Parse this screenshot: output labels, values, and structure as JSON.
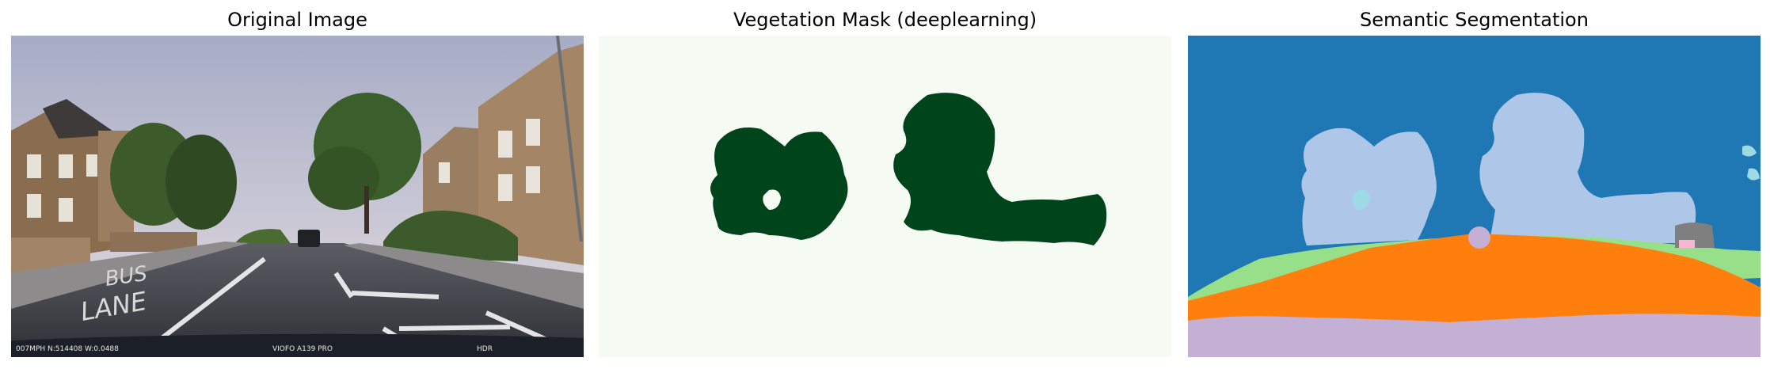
{
  "panels": [
    {
      "title": "Original Image"
    },
    {
      "title": "Vegetation Mask (deeplearning)"
    },
    {
      "title": "Semantic Segmentation"
    }
  ],
  "photo": {
    "road_markings": [
      "BUS",
      "LANE"
    ],
    "hud": {
      "left": "007MPH  N:514408  W:0.0488",
      "center": "VIOFO A139 PRO",
      "right": "HDR"
    }
  },
  "colors": {
    "mask_background": "#f5fbf2",
    "mask_vegetation": "#00441b",
    "seg_sky": "#1f77b4",
    "seg_tree": "#aec7e8",
    "seg_road": "#ff7f0e",
    "seg_sidewalk": "#98df8a",
    "seg_car_hood": "#c5b0d5",
    "seg_misc_grey": "#7f7f7f",
    "seg_misc_cyan": "#9edae5",
    "seg_misc_pink": "#f7b6d2"
  }
}
